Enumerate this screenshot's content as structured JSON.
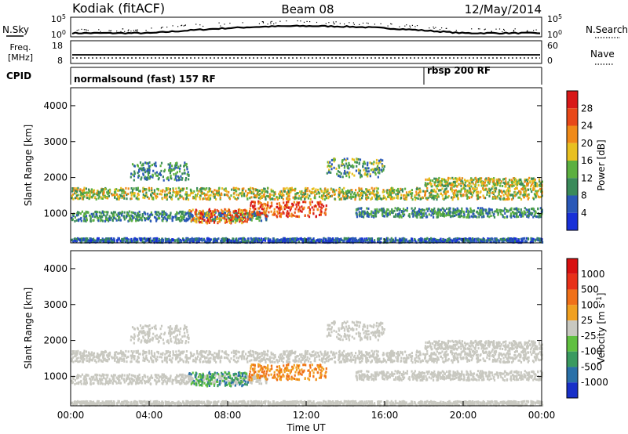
{
  "header": {
    "station": "Kodiak (fitACF)",
    "beam": "Beam 08",
    "date": "12/May/2014"
  },
  "nsky_panel": {
    "left_label": "N.Sky",
    "right_label": "N.Search",
    "left_ticks": [
      "10^5",
      "10^0"
    ],
    "right_ticks": [
      "10^5",
      "10^0"
    ]
  },
  "freq_panel": {
    "left_label_1": "Freq.",
    "left_label_2": "[MHz]",
    "right_label": "Nave",
    "left_ticks": [
      "18",
      "8"
    ],
    "right_ticks": [
      "60",
      "0"
    ]
  },
  "cpid_panel": {
    "label": "CPID",
    "modes": [
      {
        "name": "normalsound (fast) 157 RF",
        "start_hour": 0
      },
      {
        "name": "rbsp 200 RF",
        "start_hour": 18
      }
    ]
  },
  "chart_data": [
    {
      "type": "heatmap",
      "title": "",
      "xlabel": "",
      "ylabel": "Slant Range [km]",
      "x_ticks": [
        "00:00",
        "04:00",
        "08:00",
        "12:00",
        "16:00",
        "20:00",
        "00:00"
      ],
      "xlim_hours": [
        0,
        24
      ],
      "ylim": [
        180,
        4500
      ],
      "y_ticks": [
        1000,
        2000,
        3000,
        4000
      ],
      "colorbar": {
        "label": "Power [dB]",
        "ticks": [
          4,
          8,
          12,
          16,
          20,
          24,
          28
        ],
        "colors": [
          "#1830d8",
          "#2a58b8",
          "#3a8a5a",
          "#5cb040",
          "#e8c020",
          "#f08a18",
          "#e84818",
          "#d81818"
        ]
      }
    },
    {
      "type": "heatmap",
      "title": "",
      "xlabel": "Time UT",
      "ylabel": "Slant Range [km]",
      "x_ticks": [
        "00:00",
        "04:00",
        "08:00",
        "12:00",
        "16:00",
        "20:00",
        "00:00"
      ],
      "xlim_hours": [
        0,
        24
      ],
      "ylim": [
        180,
        4500
      ],
      "y_ticks": [
        1000,
        2000,
        3000,
        4000
      ],
      "colorbar": {
        "label": "Velocity [m s^-1]",
        "ticks": [
          1000,
          500,
          100,
          25,
          -25,
          -100,
          -500,
          -1000
        ],
        "colors": [
          "#1830c8",
          "#2a70a8",
          "#3a9a60",
          "#60c040",
          "#c8c8c0",
          "#f0a020",
          "#f07018",
          "#e83018",
          "#d81010"
        ]
      }
    }
  ]
}
